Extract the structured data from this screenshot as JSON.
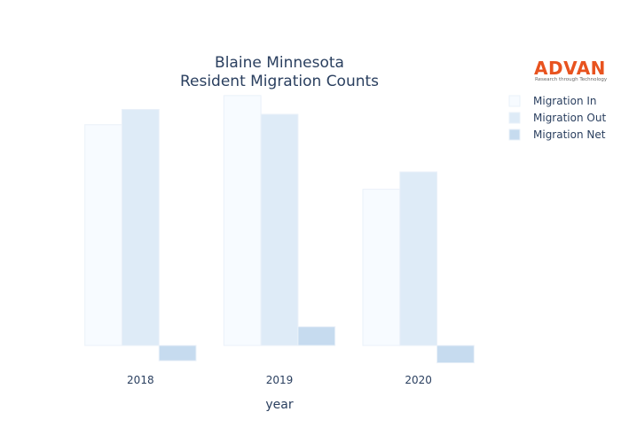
{
  "chart_data": {
    "type": "bar",
    "title_lines": [
      "Blaine Minnesota",
      "Resident Migration Counts"
    ],
    "xlabel": "year",
    "ylabel": "",
    "categories": [
      "2018",
      "2019",
      "2020"
    ],
    "series": [
      {
        "name": "Migration In",
        "values": [
          3180,
          3600,
          2250
        ],
        "color": "#f7fbff"
      },
      {
        "name": "Migration Out",
        "values": [
          3400,
          3330,
          2500
        ],
        "color": "#deebf7"
      },
      {
        "name": "Migration Net",
        "values": [
          -220,
          270,
          -250
        ],
        "color": "#c6dbef"
      }
    ],
    "ylim": [
      -320,
      3700
    ],
    "grid": false,
    "legend_position": "right",
    "bar_outline_color": "#eaf1f9"
  },
  "logo": {
    "name": "ADVAN",
    "tagline": "Research through Technology"
  }
}
